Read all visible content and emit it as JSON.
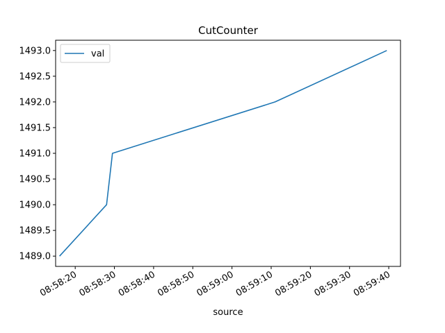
{
  "chart_data": {
    "type": "line",
    "title": "CutCounter",
    "xlabel": "source",
    "ylabel": "",
    "legend_position": "top-left",
    "grid": false,
    "x_type": "time",
    "x_ticks": [
      "08:58:20",
      "08:58:30",
      "08:58:40",
      "08:58:50",
      "08:59:00",
      "08:59:10",
      "08:59:20",
      "08:59:30",
      "08:59:40"
    ],
    "y_ticks": [
      "1489.0",
      "1489.5",
      "1490.0",
      "1490.5",
      "1491.0",
      "1491.5",
      "1492.0",
      "1492.5",
      "1493.0"
    ],
    "ylim": [
      1488.8,
      1493.2
    ],
    "xlim": [
      "08:58:15",
      "08:59:43"
    ],
    "series": [
      {
        "name": "val",
        "color": "#1f77b4",
        "x": [
          "08:58:16",
          "08:58:28",
          "08:58:29.5",
          "08:59:11",
          "08:59:39.5"
        ],
        "values": [
          1489.0,
          1490.0,
          1491.0,
          1492.0,
          1493.0
        ]
      }
    ]
  }
}
